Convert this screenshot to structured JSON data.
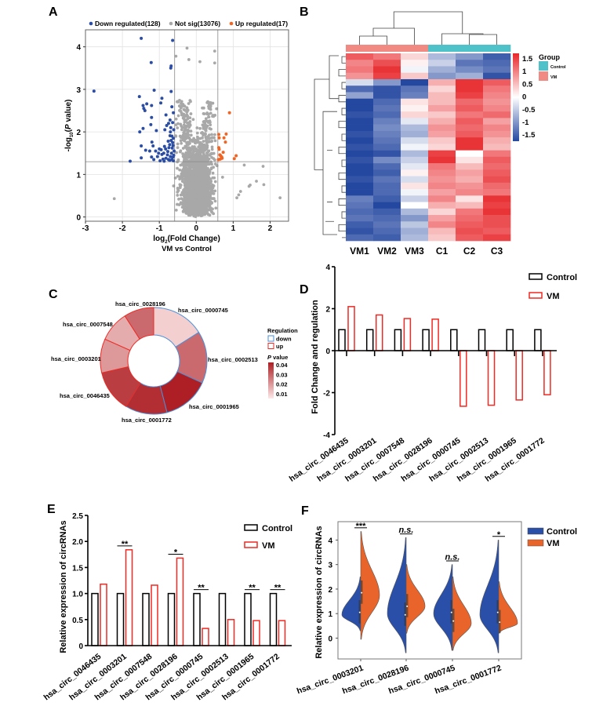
{
  "panel_labels": [
    "A",
    "B",
    "C",
    "D",
    "E",
    "F"
  ],
  "chart_data": [
    {
      "type": "scatter",
      "legend": [
        "Down regulated(128)",
        "Not sig(13076)",
        "Up regulated(17)"
      ],
      "colors": {
        "down": "#2b4da3",
        "not_sig": "#a8a8a8",
        "up": "#f06424"
      },
      "xlabel": {
        "pre": "log",
        "sub": "2",
        "post": "(Fold Change)"
      },
      "subtitle": "VM vs Control",
      "ylabel": {
        "pre": "-log",
        "sub": "10",
        "mid": "(",
        "italic": "P",
        "post": " value)"
      },
      "xlim": [
        -3,
        2.5
      ],
      "ylim": [
        -0.1,
        4.4
      ],
      "xticks": [
        "-3",
        "-2",
        "-1",
        "0",
        "1",
        "2"
      ],
      "yticks": [
        "0",
        "1",
        "2",
        "3",
        "4"
      ],
      "thresholds": {
        "log2fc": [
          -0.585,
          0.585
        ],
        "neglog10p": 1.3
      },
      "grid": true,
      "counts": {
        "down": 128,
        "not_sig": 13076,
        "up": 17
      },
      "down_points": [
        [
          -1.49,
          4.2
        ],
        [
          -0.64,
          4.15
        ],
        [
          -2.77,
          2.96
        ],
        [
          -1.22,
          3.63
        ],
        [
          -0.68,
          3.55
        ],
        [
          -0.69,
          3.5
        ],
        [
          -1.14,
          2.98
        ],
        [
          -0.68,
          2.95
        ],
        [
          -1.54,
          2.83
        ],
        [
          -0.93,
          2.79
        ],
        [
          -0.96,
          2.68
        ],
        [
          -1.44,
          2.62
        ],
        [
          -1.34,
          2.66
        ],
        [
          -1.21,
          2.62
        ],
        [
          -1.39,
          2.5
        ],
        [
          -1.42,
          2.55
        ],
        [
          -0.66,
          2.59
        ],
        [
          -0.62,
          2.45
        ],
        [
          -0.82,
          2.4
        ],
        [
          -1.21,
          2.34
        ],
        [
          -1.23,
          2.17
        ],
        [
          -1.53,
          2.0
        ],
        [
          -1.44,
          2.08
        ],
        [
          -1.08,
          2.03
        ],
        [
          -0.71,
          2.28
        ],
        [
          -0.75,
          2.2
        ],
        [
          -1.49,
          1.67
        ],
        [
          -1.2,
          1.76
        ],
        [
          -1.37,
          1.57
        ],
        [
          -1.26,
          1.55
        ],
        [
          -1.17,
          1.67
        ],
        [
          -1.79,
          1.31
        ],
        [
          -1.49,
          1.39
        ],
        [
          -1.21,
          1.41
        ],
        [
          -0.98,
          1.32
        ],
        [
          -0.93,
          1.47
        ],
        [
          -0.86,
          1.66
        ],
        [
          -0.77,
          1.54
        ],
        [
          -0.71,
          1.91
        ],
        [
          -0.64,
          1.75
        ],
        [
          -0.63,
          1.41
        ],
        [
          -0.75,
          1.35
        ],
        [
          -0.8,
          2.15
        ],
        [
          -0.85,
          2.05
        ],
        [
          -0.7,
          2.0
        ],
        [
          -0.66,
          1.9
        ],
        [
          -0.62,
          1.85
        ],
        [
          -0.68,
          1.8
        ],
        [
          -0.72,
          1.7
        ],
        [
          -0.65,
          1.62
        ],
        [
          -0.6,
          1.55
        ],
        [
          -0.67,
          1.5
        ],
        [
          -0.61,
          1.45
        ],
        [
          -0.7,
          1.42
        ],
        [
          -0.78,
          1.46
        ],
        [
          -0.82,
          1.38
        ],
        [
          -0.88,
          1.5
        ],
        [
          -0.9,
          1.36
        ],
        [
          -1.02,
          1.5
        ],
        [
          -1.05,
          1.42
        ],
        [
          -1.1,
          1.55
        ],
        [
          -0.95,
          1.58
        ],
        [
          -0.83,
          1.6
        ],
        [
          -0.74,
          1.63
        ],
        [
          -0.66,
          1.35
        ],
        [
          -0.62,
          1.32
        ],
        [
          -0.72,
          1.33
        ],
        [
          -0.87,
          1.31
        ],
        [
          -0.63,
          1.68
        ],
        [
          -0.61,
          2.05
        ],
        [
          -0.64,
          2.22
        ],
        [
          -1.15,
          1.35
        ],
        [
          -1.0,
          1.6
        ],
        [
          -0.76,
          1.78
        ],
        [
          -0.69,
          2.1
        ]
      ],
      "up_points": [
        [
          0.9,
          2.45
        ],
        [
          0.61,
          1.94
        ],
        [
          0.81,
          1.95
        ],
        [
          0.75,
          1.86
        ],
        [
          0.79,
          1.76
        ],
        [
          0.62,
          1.86
        ],
        [
          0.61,
          1.63
        ],
        [
          0.62,
          1.59
        ],
        [
          0.73,
          1.52
        ],
        [
          0.66,
          1.44
        ],
        [
          0.7,
          1.38
        ],
        [
          0.65,
          1.36
        ],
        [
          1.08,
          1.44
        ],
        [
          1.03,
          1.37
        ],
        [
          0.64,
          1.46
        ],
        [
          0.69,
          1.41
        ],
        [
          0.6,
          1.35
        ]
      ],
      "not_sig_outliers": [
        [
          -2.22,
          0.43
        ],
        [
          2.27,
          0.45
        ],
        [
          1.81,
          1.19
        ],
        [
          1.83,
          0.76
        ],
        [
          1.63,
          0.84
        ],
        [
          1.3,
          1.22
        ],
        [
          1.15,
          0.52
        ],
        [
          1.2,
          0.6
        ],
        [
          1.43,
          0.72
        ],
        [
          1.46,
          0.75
        ],
        [
          1.1,
          0.45
        ],
        [
          -0.25,
          3.97
        ],
        [
          0.5,
          3.9
        ],
        [
          0.5,
          3.62
        ],
        [
          -0.55,
          3.78
        ],
        [
          0.1,
          3.65
        ],
        [
          -0.2,
          3.7
        ]
      ]
    },
    {
      "type": "heatmap",
      "columns": [
        "VM1",
        "VM2",
        "VM3",
        "C1",
        "C2",
        "C3"
      ],
      "column_groups": [
        "VM",
        "VM",
        "VM",
        "Control",
        "Control",
        "Control"
      ],
      "legend_title": "Group",
      "groups": [
        {
          "name": "Control",
          "color": "#4fc1c8"
        },
        {
          "name": "VM",
          "color": "#f08a82"
        }
      ],
      "colorbar_ticks": [
        "1.5",
        "1",
        "0.5",
        "0",
        "-0.5",
        "-1",
        "-1.5"
      ],
      "color_range": [
        -1.6,
        1.6
      ],
      "colors": {
        "low": "#2447a0",
        "mid": "#ffffff",
        "high": "#e8262a"
      },
      "rows": [
        [
          1.2,
          1.0,
          0.3,
          -0.6,
          -0.9,
          -1.4
        ],
        [
          0.9,
          1.3,
          0.1,
          -0.4,
          -1.2,
          -1.3
        ],
        [
          1.0,
          1.5,
          -0.1,
          -0.7,
          -1.0,
          -1.2
        ],
        [
          0.8,
          1.4,
          0.4,
          -0.9,
          -0.7,
          -1.5
        ],
        [
          -0.3,
          -0.9,
          -1.6,
          0.6,
          1.5,
          1.2
        ],
        [
          -1.3,
          -1.5,
          -1.2,
          0.3,
          1.5,
          1.0
        ],
        [
          -0.8,
          -1.5,
          -1.1,
          0.5,
          1.4,
          0.9
        ],
        [
          -1.6,
          -1.3,
          0.2,
          0.5,
          1.1,
          0.8
        ],
        [
          -1.6,
          -1.2,
          0.1,
          0.7,
          1.2,
          0.9
        ],
        [
          -1.5,
          -1.3,
          0.3,
          0.4,
          1.0,
          1.1
        ],
        [
          -1.6,
          -1.1,
          -0.2,
          0.6,
          1.2,
          0.7
        ],
        [
          -1.6,
          -1.0,
          -0.6,
          0.8,
          1.1,
          0.9
        ],
        [
          -1.5,
          -1.1,
          -0.7,
          0.7,
          1.2,
          0.8
        ],
        [
          -1.6,
          -1.2,
          -0.3,
          0.4,
          1.5,
          0.6
        ],
        [
          -1.5,
          -1.3,
          -0.1,
          0.3,
          1.5,
          0.5
        ],
        [
          -1.6,
          -1.5,
          -0.6,
          1.4,
          0.0,
          1.0
        ],
        [
          -1.5,
          -1.0,
          -0.4,
          1.5,
          0.2,
          1.2
        ],
        [
          -1.6,
          -1.3,
          -0.2,
          1.0,
          0.5,
          1.1
        ],
        [
          -1.6,
          -1.4,
          0.1,
          0.9,
          0.7,
          1.2
        ],
        [
          -1.5,
          -1.2,
          -0.3,
          0.8,
          0.6,
          1.3
        ],
        [
          -1.6,
          -1.3,
          0.2,
          0.9,
          0.8,
          1.1
        ],
        [
          -1.6,
          -1.3,
          -0.1,
          0.7,
          0.9,
          1.0
        ],
        [
          -1.1,
          -1.4,
          -0.4,
          0.9,
          0.2,
          1.5
        ],
        [
          -1.2,
          -1.6,
          0.0,
          0.6,
          0.5,
          1.4
        ],
        [
          -1.3,
          -1.4,
          -0.6,
          0.3,
          1.0,
          1.5
        ],
        [
          -1.2,
          -1.3,
          -0.9,
          0.7,
          1.1,
          1.3
        ],
        [
          -1.4,
          -1.2,
          -0.5,
          0.9,
          1.2,
          1.3
        ],
        [
          -1.5,
          -1.3,
          -0.7,
          0.5,
          1.3,
          1.2
        ],
        [
          -1.3,
          -1.4,
          -0.6,
          0.4,
          1.2,
          1.4
        ]
      ]
    },
    {
      "type": "pie",
      "donut": true,
      "slices": [
        {
          "label": "hsa_circ_0000745",
          "value": 2.65,
          "regulation": "down",
          "p_value": 0.005
        },
        {
          "label": "hsa_circ_0002513",
          "value": 2.6,
          "regulation": "down",
          "p_value": 0.025
        },
        {
          "label": "hsa_circ_0001965",
          "value": 2.35,
          "regulation": "down",
          "p_value": 0.04
        },
        {
          "label": "hsa_circ_0001772",
          "value": 2.1,
          "regulation": "down",
          "p_value": 0.037
        },
        {
          "label": "hsa_circ_0046435",
          "value": 2.1,
          "regulation": "up",
          "p_value": 0.034
        },
        {
          "label": "hsa_circ_0003201",
          "value": 1.7,
          "regulation": "up",
          "p_value": 0.016
        },
        {
          "label": "hsa_circ_0007548",
          "value": 1.53,
          "regulation": "up",
          "p_value": 0.012
        },
        {
          "label": "hsa_circ_0028196",
          "value": 1.5,
          "regulation": "up",
          "p_value": 0.025
        }
      ],
      "legend_regulation_title": "Regulation",
      "legend_regulation": [
        "down",
        "up"
      ],
      "regulation_colors": {
        "down": "#4a90d9",
        "up": "#ee2a24"
      },
      "legend_p_title": {
        "italic": "P",
        "post": " value"
      },
      "p_ticks": [
        "0.04",
        "0.03",
        "0.02",
        "0.01"
      ],
      "p_colors": {
        "low": "#fde8e8",
        "high": "#ad1f24"
      }
    },
    {
      "type": "bar",
      "categories": [
        "hsa_circ_0046435",
        "hsa_circ_0003201",
        "hsa_circ_0007548",
        "hsa_circ_0028196",
        "hsa_circ_0000745",
        "hsa_circ_0002513",
        "hsa_circ_0001965",
        "hsa_circ_0001772"
      ],
      "series": [
        {
          "name": "Control",
          "color": "#000000",
          "values": [
            1,
            1,
            1,
            1,
            1,
            1,
            1,
            1
          ]
        },
        {
          "name": "VM",
          "color": "#ee2a24",
          "values": [
            2.1,
            1.7,
            1.53,
            1.5,
            -2.65,
            -2.6,
            -2.35,
            -2.1
          ]
        }
      ],
      "ylabel": "Fold Change and regulation",
      "ylim": [
        -4,
        4
      ],
      "yticks": [
        "4",
        "2",
        "0",
        "-2",
        "-4"
      ],
      "legend": "top-right"
    },
    {
      "type": "bar",
      "categories": [
        "hsa_circ_0046435",
        "hsa_circ_0003201",
        "hsa_circ_0007548",
        "hsa_circ_0028196",
        "hsa_circ_0000745",
        "hsa_circ_0002513",
        "hsa_circ_0001965",
        "hsa_circ_0001772"
      ],
      "series": [
        {
          "name": "Control",
          "color": "#000000",
          "values": [
            1,
            1,
            1,
            1,
            1,
            1,
            1,
            1
          ]
        },
        {
          "name": "VM",
          "color": "#ee2a24",
          "values": [
            1.18,
            1.84,
            1.16,
            1.68,
            0.33,
            0.5,
            0.48,
            0.48
          ]
        }
      ],
      "significance": [
        "",
        "**",
        "",
        "*",
        "**",
        "",
        "**",
        "**"
      ],
      "ylabel": "Relative expression of circRNAs",
      "ylim": [
        0,
        2.5
      ],
      "yticks": [
        "2.5",
        "2.0",
        "1.5",
        "1.0",
        "0.5",
        "0"
      ],
      "legend": "top-right"
    },
    {
      "type": "violin",
      "categories": [
        "hsa_circ_0003201",
        "hsa_circ_0028196",
        "hsa_circ_0000745",
        "hsa_circ_0001772"
      ],
      "series": [
        {
          "name": "Control",
          "color": "#2a4fa8",
          "stats": [
            {
              "min": 0.3,
              "max": 2.5,
              "mode": 0.95,
              "median": 1.05
            },
            {
              "min": -0.6,
              "max": 4.1,
              "mode": 1.0,
              "median": 0.95
            },
            {
              "min": -0.5,
              "max": 3.0,
              "mode": 1.0,
              "median": 1.05
            },
            {
              "min": -0.6,
              "max": 4.0,
              "mode": 0.95,
              "median": 1.05
            }
          ]
        },
        {
          "name": "VM",
          "color": "#e8642a",
          "stats": [
            {
              "min": -0.05,
              "max": 4.35,
              "mode": 1.75,
              "median": 1.85
            },
            {
              "min": 0.2,
              "max": 3.0,
              "mode": 1.3,
              "median": 1.3
            },
            {
              "min": -0.5,
              "max": 2.5,
              "mode": 0.6,
              "median": 0.7
            },
            {
              "min": 0.2,
              "max": 2.3,
              "mode": 0.6,
              "median": 0.65
            }
          ]
        }
      ],
      "significance": [
        "***",
        "n.s.",
        "n.s.",
        "*"
      ],
      "ylabel": "Relative expression of circRNAs",
      "ylim": [
        -0.85,
        4.75
      ],
      "yticks": [
        "4",
        "3",
        "2",
        "1",
        "0"
      ],
      "legend": "top-right"
    }
  ]
}
